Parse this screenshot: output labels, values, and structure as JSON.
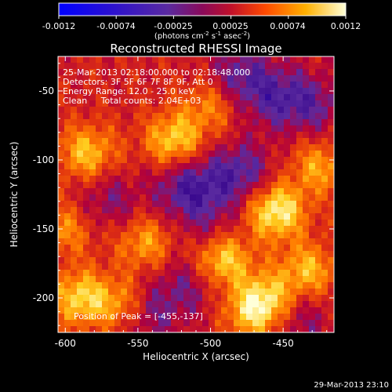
{
  "colorbar": {
    "tick_labels": [
      "-0.0012",
      "-0.00074",
      "-0.00025",
      "0.00025",
      "0.00074",
      "0.0012"
    ],
    "unit_label": "(photons cm",
    "unit_sup1": "-2",
    "unit_mid": " s",
    "unit_sup2": "-1",
    "unit_mid2": " asec",
    "unit_sup3": "-2",
    "unit_end": ")"
  },
  "footer_timestamp": "29-Mar-2013 23:10",
  "colors": {
    "background": "#000000",
    "foreground": "#ffffff",
    "colormap": [
      "#0000ff",
      "#3b0a8f",
      "#5a2aa0",
      "#b0003c",
      "#e03010",
      "#ff7a00",
      "#ffd020",
      "#ffffd8"
    ]
  },
  "chart_data": {
    "type": "heatmap",
    "title": "Reconstructed RHESSI Image",
    "xlabel": "Heliocentric X (arcsec)",
    "ylabel": "Heliocentric Y (arcsec)",
    "xlim": [
      -605,
      -415
    ],
    "ylim": [
      -225,
      -25
    ],
    "xticks": [
      -600,
      -550,
      -500,
      -450
    ],
    "yticks": [
      -50,
      -100,
      -150,
      -200
    ],
    "xtick_labels": [
      "-600",
      "-550",
      "-500",
      "-450"
    ],
    "ytick_labels": [
      "-50",
      "-100",
      "-150",
      "-200"
    ],
    "value_range": [
      -0.0012,
      0.0012
    ],
    "annotations": [
      "25-Mar-2013 02:18:00.000 to 02:18:48.000",
      "Detectors: 3F 5F 6F 7F 8F 9F, Att 0",
      "Energy Range: 12.0 - 25.0 keV",
      "Clean     Total counts: 2.04E+03"
    ],
    "peak_label": "Position of Peak = [-455,-137]",
    "peak": {
      "x": -455,
      "y": -137
    },
    "hotspots": [
      {
        "x": -455,
        "y": -137,
        "value": 0.0012
      },
      {
        "x": -492,
        "y": -172,
        "value": 0.00105
      },
      {
        "x": -525,
        "y": -86,
        "value": 0.00095
      },
      {
        "x": -590,
        "y": -200,
        "value": 0.00095
      },
      {
        "x": -585,
        "y": -95,
        "value": 0.00085
      },
      {
        "x": -560,
        "y": -205,
        "value": 0.0008
      },
      {
        "x": -545,
        "y": -160,
        "value": 0.0007
      },
      {
        "x": -470,
        "y": -210,
        "value": 0.0009
      },
      {
        "x": -433,
        "y": -180,
        "value": 0.0008
      },
      {
        "x": -425,
        "y": -105,
        "value": 0.0007
      },
      {
        "x": -500,
        "y": -60,
        "value": 0.0006
      },
      {
        "x": -460,
        "y": -200,
        "value": 0.0007
      },
      {
        "x": -600,
        "y": -150,
        "value": 0.0006
      }
    ],
    "coldspots": [
      {
        "x": -515,
        "y": -120,
        "value": -0.0009
      },
      {
        "x": -480,
        "y": -110,
        "value": -0.0008
      },
      {
        "x": -545,
        "y": -210,
        "value": -0.0007
      },
      {
        "x": -480,
        "y": -40,
        "value": -0.0007
      },
      {
        "x": -455,
        "y": -55,
        "value": -0.0006
      },
      {
        "x": -430,
        "y": -60,
        "value": -0.0006
      },
      {
        "x": -570,
        "y": -130,
        "value": -0.0005
      },
      {
        "x": -440,
        "y": -215,
        "value": -0.0005
      },
      {
        "x": -515,
        "y": -190,
        "value": -0.0005
      },
      {
        "x": -500,
        "y": -150,
        "value": -0.0004
      }
    ]
  }
}
